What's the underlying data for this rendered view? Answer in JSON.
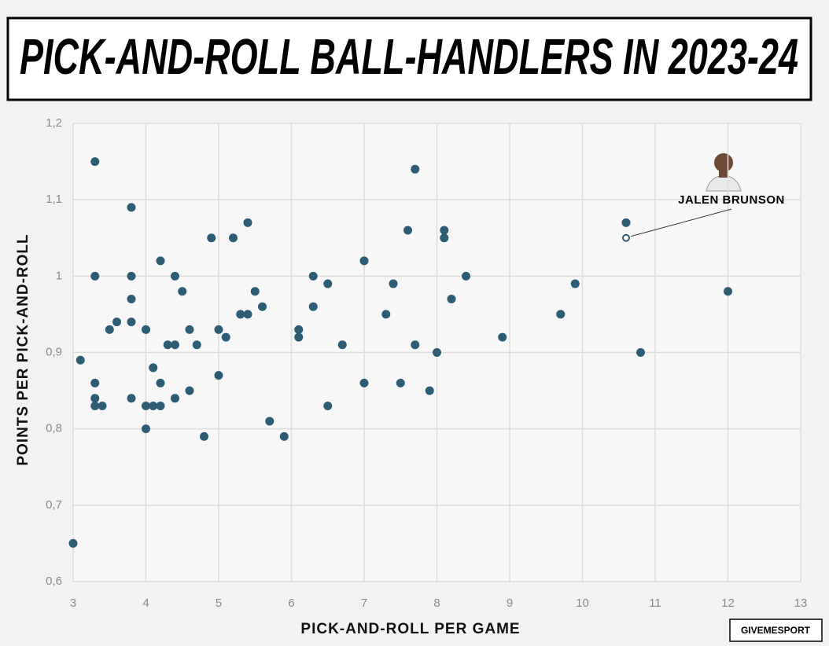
{
  "chart_data": {
    "type": "scatter",
    "title": "PICK-AND-ROLL BALL-HANDLERS IN 2023-24",
    "x_label": "PICK-AND-ROLL PER GAME",
    "y_label": "POINTS PER PICK-AND-ROLL",
    "source": "GIVEMESPORT",
    "xlim": [
      3,
      13
    ],
    "xticks": [
      3,
      4,
      5,
      6,
      7,
      8,
      9,
      10,
      11,
      12,
      13
    ],
    "ylim": [
      0.6,
      1.2
    ],
    "yticks": [
      {
        "value": 0.6,
        "label": "0,6"
      },
      {
        "value": 0.7,
        "label": "0,7"
      },
      {
        "value": 0.8,
        "label": "0,8"
      },
      {
        "value": 0.9,
        "label": "0,9"
      },
      1,
      {
        "value": 1.1,
        "label": "1,1"
      },
      {
        "value": 1.2,
        "label": "1,2"
      }
    ],
    "grid": true,
    "color": "#2c5d74",
    "x": [
      3.3,
      3.8,
      3.3,
      3.8,
      3.8,
      3.8,
      3.6,
      3.5,
      3.1,
      3.3,
      3.3,
      3.3,
      3.4,
      3.8,
      3.0,
      4.0,
      4.0,
      4.1,
      4.2,
      4.0,
      4.1,
      4.2,
      4.2,
      4.4,
      4.5,
      4.3,
      4.4,
      4.6,
      4.7,
      4.6,
      4.4,
      4.8,
      4.9,
      5.0,
      5.1,
      5.0,
      5.2,
      5.4,
      5.3,
      5.4,
      5.5,
      5.6,
      5.7,
      5.9,
      6.1,
      6.1,
      6.3,
      6.3,
      6.5,
      6.5,
      6.7,
      7.0,
      7.0,
      7.3,
      7.4,
      7.5,
      7.6,
      7.7,
      7.7,
      7.9,
      8.0,
      8.1,
      8.1,
      8.2,
      8.4,
      8.9,
      9.7,
      9.9,
      10.6,
      10.8,
      12.0
    ],
    "values": [
      1.15,
      1.09,
      1.0,
      1.0,
      0.97,
      0.94,
      0.94,
      0.93,
      0.89,
      0.86,
      0.84,
      0.83,
      0.83,
      0.84,
      0.65,
      0.93,
      0.83,
      0.83,
      0.83,
      0.8,
      0.88,
      0.86,
      1.02,
      1.0,
      0.98,
      0.91,
      0.91,
      0.93,
      0.91,
      0.85,
      0.84,
      0.79,
      1.05,
      0.93,
      0.92,
      0.87,
      1.05,
      1.07,
      0.95,
      0.95,
      0.98,
      0.96,
      0.81,
      0.79,
      0.93,
      0.92,
      1.0,
      0.96,
      0.99,
      0.83,
      0.91,
      1.02,
      0.86,
      0.95,
      0.99,
      0.86,
      1.06,
      1.14,
      0.91,
      0.85,
      0.9,
      1.06,
      1.05,
      0.97,
      1.0,
      0.92,
      0.95,
      0.99,
      1.07,
      0.9,
      0.98
    ],
    "annotations": [
      {
        "text": "JALEN BRUNSON",
        "x": 10.6,
        "y": 1.05
      }
    ]
  }
}
